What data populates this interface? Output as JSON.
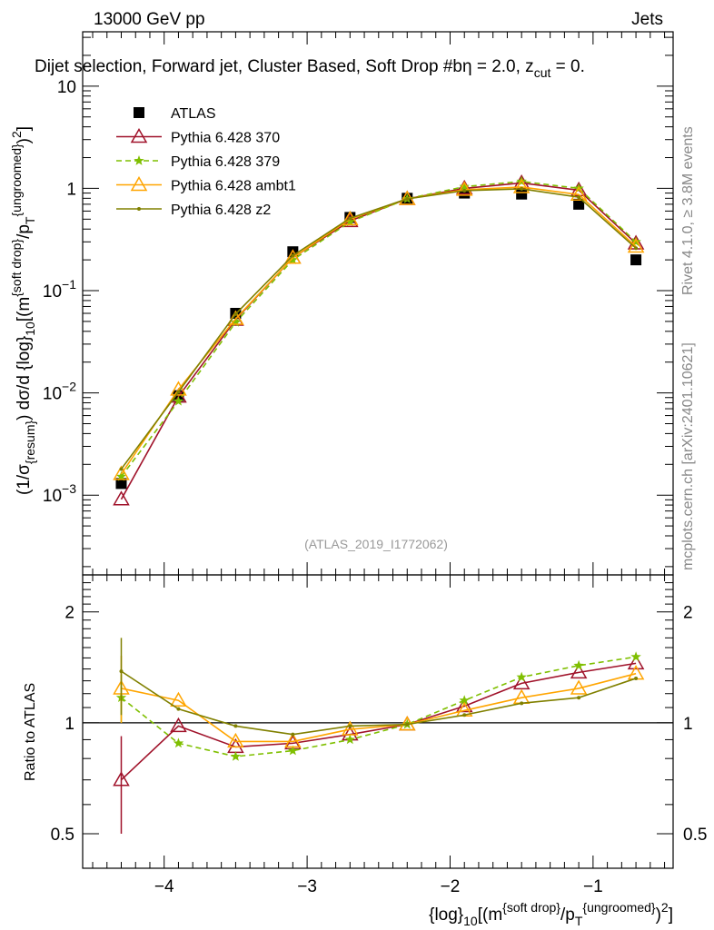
{
  "chart_data": {
    "type": "line",
    "header_left": "13000 GeV pp",
    "header_right": "Jets",
    "title_pieces": [
      {
        "t": "Dijet selection, Forward jet, Cluster Based, Soft Drop #b"
      },
      {
        "t": "η = 2.0, z"
      },
      {
        "t": "cut",
        "sub": true
      },
      {
        "t": " = 0."
      }
    ],
    "side_label_1": "Rivet 4.1.0, ≥ 3.8M events",
    "side_label_2": "mcplots.cern.ch [arXiv:2401.10621]",
    "watermark": "(ATLAS_2019_I1772062)",
    "ylabel_pieces": [
      {
        "t": "(1/σ"
      },
      {
        "t": "{resum}",
        "sub": true
      },
      {
        "t": ") dσ/d {log}"
      },
      {
        "t": "10",
        "sub": true
      },
      {
        "t": "[(m"
      },
      {
        "t": "{soft drop}",
        "sup": true
      },
      {
        "t": "/p"
      },
      {
        "t": "T",
        "sub": true
      },
      {
        "t": "{ungroomed}",
        "sup": true
      },
      {
        "t": ")"
      },
      {
        "t": "2",
        "sup": true
      },
      {
        "t": "]"
      }
    ],
    "xlabel_pieces": [
      {
        "t": "{log}"
      },
      {
        "t": "10",
        "sub": true
      },
      {
        "t": "[(m"
      },
      {
        "t": "{soft drop}",
        "sup": true
      },
      {
        "t": "/p"
      },
      {
        "t": "T",
        "sub": true
      },
      {
        "t": "{ungroomed}",
        "sup": true
      },
      {
        "t": ")"
      },
      {
        "t": "2",
        "sup": true
      },
      {
        "t": "]"
      }
    ],
    "ratio_ylabel": "Ratio to ATLAS",
    "xlim": [
      -4.57,
      -0.44
    ],
    "ylim": [
      0.000166,
      34
    ],
    "ratio_ylim": [
      0.403,
      2.52
    ],
    "x_ticks": [
      -4,
      -3,
      -2,
      -1
    ],
    "x_tick_labels": [
      "−4",
      "−3",
      "−2",
      "−1"
    ],
    "y_ticks": [
      0.001,
      0.01,
      0.1,
      1,
      10
    ],
    "y_tick_labels": [
      {
        "base": "10",
        "exp": "−3"
      },
      {
        "base": "10",
        "exp": "−2"
      },
      {
        "base": "10",
        "exp": "−1"
      },
      {
        "base": "1",
        "exp": ""
      },
      {
        "base": "10",
        "exp": ""
      }
    ],
    "ratio_ticks": [
      0.5,
      1,
      2
    ],
    "ratio_tick_labels": [
      "0.5",
      "1",
      "2"
    ],
    "x": [
      -4.3,
      -3.9,
      -3.5,
      -3.1,
      -2.7,
      -2.3,
      -1.9,
      -1.5,
      -1.1,
      -0.7
    ],
    "legend_position": "top-left",
    "series": [
      {
        "name": "ATLAS",
        "color": "#000000",
        "marker": "square",
        "dashed": false,
        "values": [
          0.0013,
          0.0094,
          0.06,
          0.24,
          0.52,
          0.8,
          0.9,
          0.88,
          0.7,
          0.2
        ],
        "ratio": null
      },
      {
        "name": "Pythia 6.428 370",
        "color": "#a0122a",
        "marker": "triangle-open",
        "dashed": false,
        "values": [
          0.00091,
          0.0092,
          0.052,
          0.21,
          0.48,
          0.79,
          1.0,
          1.13,
          0.96,
          0.29
        ],
        "ratio": [
          0.7,
          0.98,
          0.86,
          0.88,
          0.93,
          0.99,
          1.11,
          1.28,
          1.37,
          1.45
        ],
        "ratio_err_first": [
          0.5,
          0.92
        ]
      },
      {
        "name": "Pythia 6.428 379",
        "color": "#7fbf00",
        "marker": "star",
        "dashed": true,
        "values": [
          0.00152,
          0.0083,
          0.049,
          0.2,
          0.47,
          0.79,
          1.04,
          1.17,
          1.0,
          0.3
        ],
        "ratio": [
          1.17,
          0.88,
          0.81,
          0.84,
          0.9,
          0.99,
          1.15,
          1.33,
          1.43,
          1.51
        ],
        "ratio_err_first": [
          1.0,
          1.35
        ]
      },
      {
        "name": "Pythia 6.428 ambt1",
        "color": "#ffa500",
        "marker": "triangle-open",
        "dashed": false,
        "values": [
          0.00161,
          0.0108,
          0.053,
          0.21,
          0.5,
          0.79,
          0.97,
          1.03,
          0.87,
          0.27
        ],
        "ratio": [
          1.24,
          1.15,
          0.89,
          0.89,
          0.96,
          0.99,
          1.08,
          1.17,
          1.24,
          1.36
        ],
        "ratio_err_first": [
          1.0,
          1.52
        ]
      },
      {
        "name": "Pythia 6.428 z2",
        "color": "#808000",
        "marker": "dot",
        "dashed": false,
        "values": [
          0.0018,
          0.0102,
          0.059,
          0.22,
          0.51,
          0.79,
          0.95,
          0.99,
          0.82,
          0.26
        ],
        "ratio": [
          1.38,
          1.09,
          0.98,
          0.93,
          0.98,
          0.99,
          1.05,
          1.13,
          1.17,
          1.32
        ],
        "ratio_err_first": [
          1.05,
          1.7
        ]
      }
    ]
  }
}
